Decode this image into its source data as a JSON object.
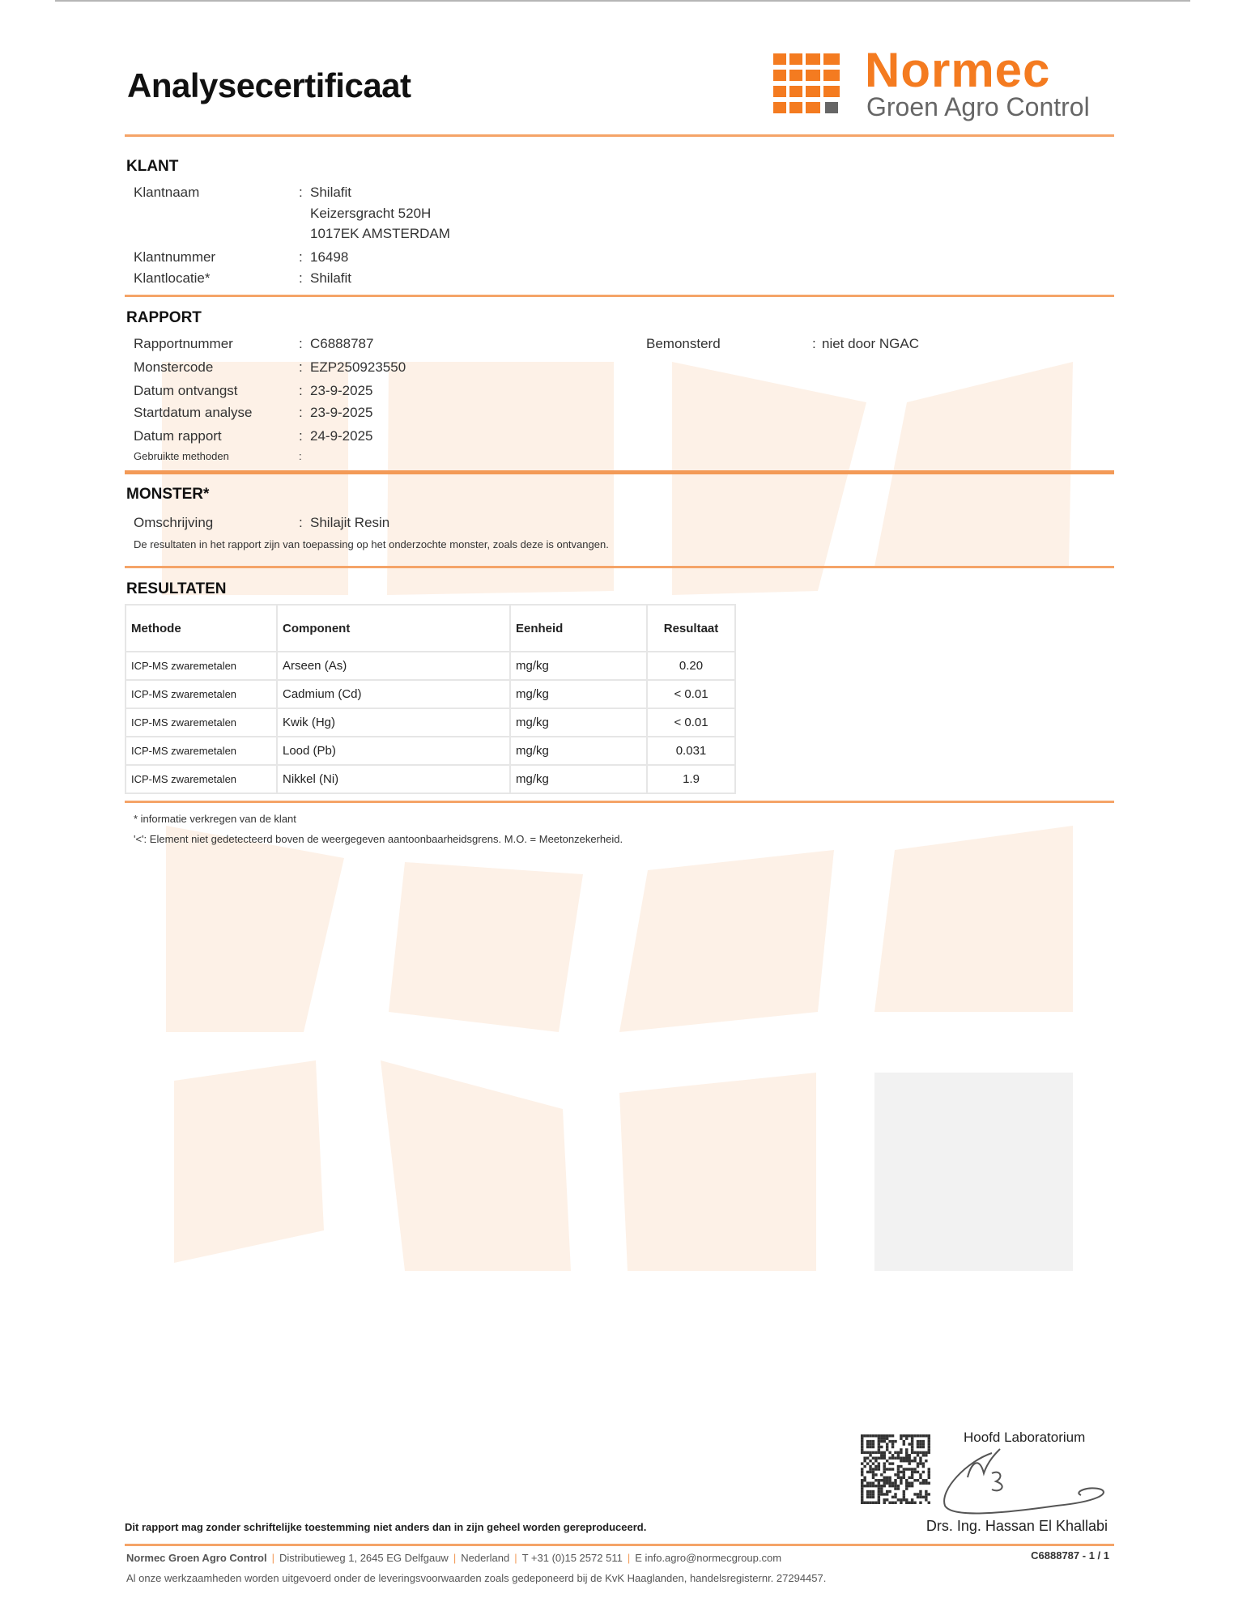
{
  "header": {
    "title": "Analysecertificaat",
    "logo_name": "Normec",
    "logo_sub": "Groen Agro Control",
    "brand_color": "#f47b20"
  },
  "klant": {
    "heading": "KLANT",
    "rows": [
      {
        "label": "Klantnaam",
        "value": "Shilafit"
      },
      {
        "label": "",
        "value": "Keizersgracht 520H"
      },
      {
        "label": "",
        "value": "1017EK AMSTERDAM"
      },
      {
        "label": "Klantnummer",
        "value": "16498"
      },
      {
        "label": "Klantlocatie*",
        "value": "Shilafit"
      }
    ]
  },
  "rapport": {
    "heading": "RAPPORT",
    "rows": [
      {
        "label": "Rapportnummer",
        "value": "C6888787"
      },
      {
        "label": "Monstercode",
        "value": "EZP250923550"
      },
      {
        "label": "Datum ontvangst",
        "value": "23-9-2025"
      },
      {
        "label": "Startdatum analyse",
        "value": "23-9-2025"
      },
      {
        "label": "Datum rapport",
        "value": "24-9-2025"
      }
    ],
    "methods_label": "Gebruikte methoden",
    "methods_value": "",
    "bemonsterd_label": "Bemonsterd",
    "bemonsterd_value": "niet door NGAC"
  },
  "monster": {
    "heading": "MONSTER*",
    "label": "Omschrijving",
    "value": "Shilajit Resin",
    "note": "De resultaten in het rapport zijn van toepassing op het onderzochte monster, zoals deze is ontvangen."
  },
  "resultaten": {
    "heading": "RESULTATEN",
    "columns": [
      "Methode",
      "Component",
      "Eenheid",
      "Resultaat"
    ],
    "rows": [
      [
        "ICP-MS zwaremetalen",
        "Arseen (As)",
        "mg/kg",
        "0.20"
      ],
      [
        "ICP-MS zwaremetalen",
        "Cadmium (Cd)",
        "mg/kg",
        "< 0.01"
      ],
      [
        "ICP-MS zwaremetalen",
        "Kwik (Hg)",
        "mg/kg",
        "< 0.01"
      ],
      [
        "ICP-MS zwaremetalen",
        "Lood (Pb)",
        "mg/kg",
        "0.031"
      ],
      [
        "ICP-MS zwaremetalen",
        "Nikkel (Ni)",
        "mg/kg",
        "1.9"
      ]
    ]
  },
  "footnotes": [
    "* informatie verkregen van de klant",
    "'<': Element niet gedetecteerd boven de weergegeven aantoonbaarheidsgrens. M.O. = Meetonzekerheid."
  ],
  "signature": {
    "role": "Hoofd Laboratorium",
    "name": "Drs. Ing. Hassan El Khallabi"
  },
  "footer": {
    "reproduction": "Dit rapport mag zonder schriftelijke toestemming niet anders dan in zijn geheel worden gereproduceerd.",
    "company": "Normec Groen Agro Control",
    "address": "Distributieweg 1, 2645 EG Delfgauw",
    "country": "Nederland",
    "phone": "T +31 (0)15 2572 511",
    "email": "E info.agro@normecgroup.com",
    "terms": "Al onze werkzaamheden worden uitgevoerd onder de leveringsvoorwaarden zoals gedeponeerd bij de KvK Haaglanden, handelsregisternr. 27294457.",
    "page_ref": "C6888787 - 1 / 1"
  }
}
